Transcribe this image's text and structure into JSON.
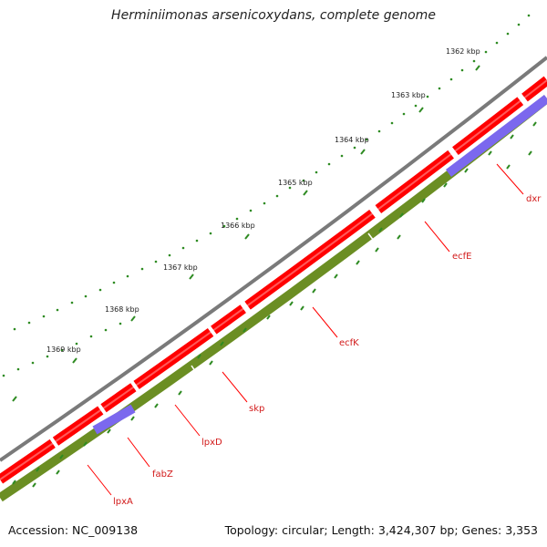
{
  "title": "Herminiimonas arsenicoxydans, complete genome",
  "accession": "Accession: NC_009138",
  "stats": "Topology: circular; Length: 3,424,307 bp; Genes: 3,353",
  "kbp_labels": [
    "1362 kbp",
    "1363 kbp",
    "1364 kbp",
    "1365 kbp",
    "1366 kbp",
    "1367 kbp",
    "1368 kbp",
    "1369 kbp"
  ],
  "genes": [
    "dxr",
    "ecfE",
    "ecfK",
    "skp",
    "lpxD",
    "fabZ",
    "lpxA"
  ],
  "colors": {
    "backbone": "#7a7a7a",
    "forward_cds": "#ff0000",
    "reverse_cds": "#6b8e23",
    "purple_feature": "#7b68ee",
    "tick": "#2e8b22",
    "gene_label": "#d21a1a"
  }
}
